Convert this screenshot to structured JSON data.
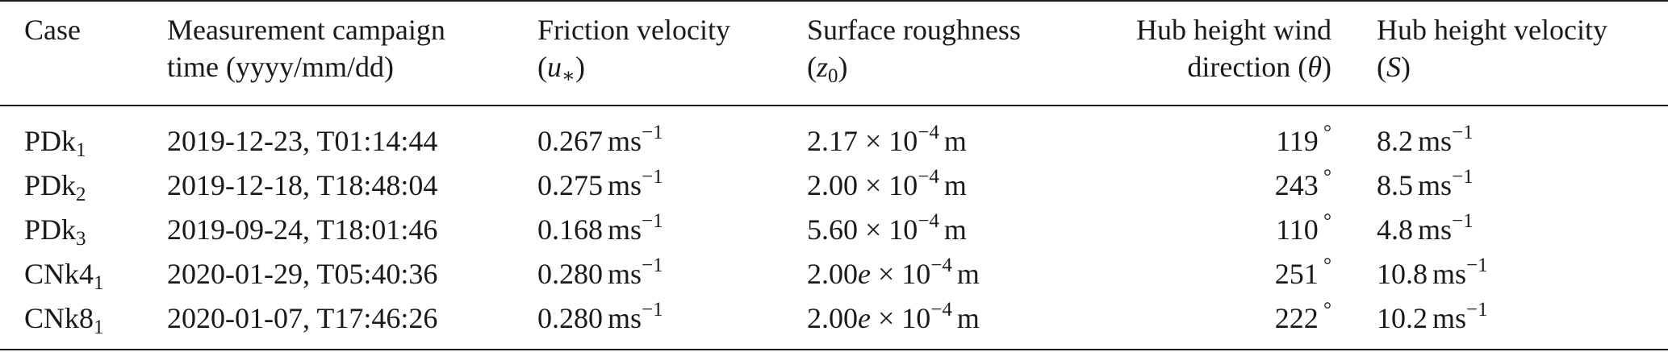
{
  "table": {
    "headers": {
      "case": [
        "Case"
      ],
      "campaign": [
        "Measurement campaign",
        "time (yyyy/mm/dd)"
      ],
      "friction": [
        "Friction velocity",
        "(u*)"
      ],
      "roughness": [
        "Surface roughness",
        "(z0)"
      ],
      "direction": [
        "Hub height wind",
        "direction (θ)"
      ],
      "velocity": [
        "Hub height velocity",
        "(S)"
      ]
    },
    "rows": [
      {
        "case_base": "PDk",
        "case_sub": "1",
        "time": "2019-12-23, T01:14:44",
        "friction_val": "0.267",
        "roughness_coef": "2.17",
        "roughness_e": "",
        "roughness_exp": "−4",
        "direction_val": "119",
        "velocity_val": "8.2"
      },
      {
        "case_base": "PDk",
        "case_sub": "2",
        "time": "2019-12-18, T18:48:04",
        "friction_val": "0.275",
        "roughness_coef": "2.00",
        "roughness_e": "",
        "roughness_exp": "−4",
        "direction_val": "243",
        "velocity_val": "8.5"
      },
      {
        "case_base": "PDk",
        "case_sub": "3",
        "time": "2019-09-24, T18:01:46",
        "friction_val": "0.168",
        "roughness_coef": "5.60",
        "roughness_e": "",
        "roughness_exp": "−4",
        "direction_val": "110",
        "velocity_val": "4.8"
      },
      {
        "case_base": "CNk4",
        "case_sub": "1",
        "time": "2020-01-29, T05:40:36",
        "friction_val": "0.280",
        "roughness_coef": "2.00",
        "roughness_e": "e",
        "roughness_exp": "−4",
        "direction_val": "251",
        "velocity_val": "10.8"
      },
      {
        "case_base": "CNk8",
        "case_sub": "1",
        "time": "2020-01-07, T17:46:26",
        "friction_val": "0.280",
        "roughness_coef": "2.00",
        "roughness_e": "e",
        "roughness_exp": "−4",
        "direction_val": "222",
        "velocity_val": "10.2"
      }
    ],
    "units": {
      "velocity": "ms",
      "velocity_exp": "−1",
      "times": "× 10",
      "meter": "m",
      "degree": "°"
    }
  }
}
